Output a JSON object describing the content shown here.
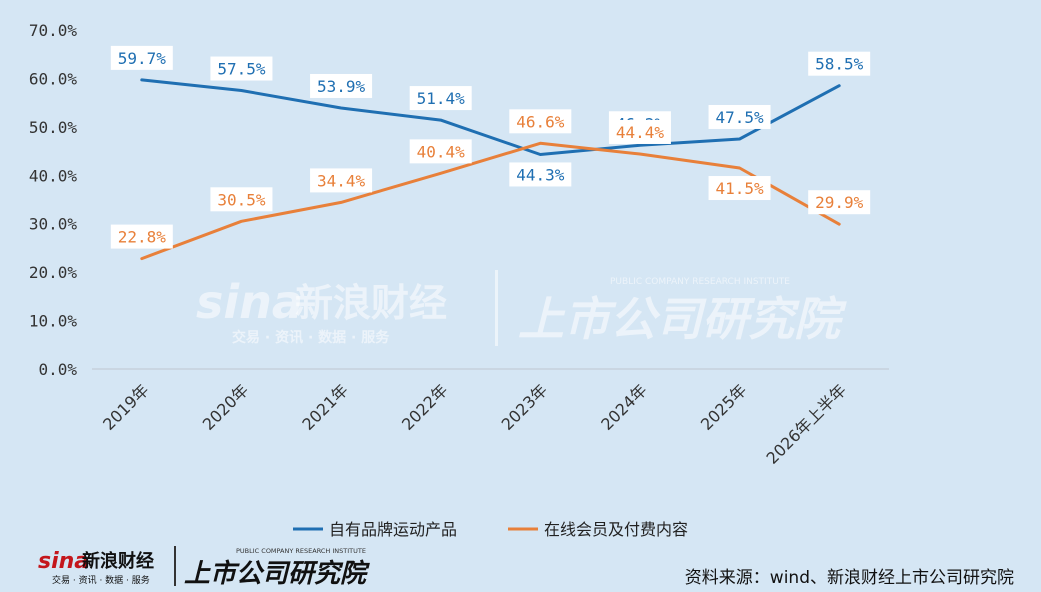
{
  "chart_data": {
    "type": "line",
    "title": "",
    "xlabel": "",
    "ylabel": "",
    "categories": [
      "2019年",
      "2020年",
      "2021年",
      "2022年",
      "2023年",
      "2024年",
      "2025年",
      "2026年上半年"
    ],
    "ylim": [
      0,
      70
    ],
    "yticks": [
      "0.0%",
      "10.0%",
      "20.0%",
      "30.0%",
      "40.0%",
      "50.0%",
      "60.0%",
      "70.0%"
    ],
    "grid": false,
    "legend_position": "bottom",
    "series": [
      {
        "name": "自有品牌运动产品",
        "color": "#1f6fb2",
        "values": [
          59.7,
          57.5,
          53.9,
          51.4,
          44.3,
          46.2,
          47.5,
          58.5
        ],
        "labels": [
          "59.7%",
          "57.5%",
          "53.9%",
          "51.4%",
          "44.3%",
          "46.2%",
          "47.5%",
          "58.5%"
        ]
      },
      {
        "name": "在线会员及付费内容",
        "color": "#e8803a",
        "values": [
          22.8,
          30.5,
          34.4,
          40.4,
          46.6,
          44.4,
          41.5,
          29.9
        ],
        "labels": [
          "22.8%",
          "30.5%",
          "34.4%",
          "40.4%",
          "46.6%",
          "44.4%",
          "41.5%",
          "29.9%"
        ]
      }
    ]
  },
  "watermark": {
    "sina_logo": "sina",
    "sina_name": "新浪财经",
    "sina_sub": "交易 · 资讯 · 数据 · 服务",
    "institute_name": "上市公司研究院",
    "institute_en": "PUBLIC COMPANY RESEARCH INSTITUTE"
  },
  "footer": {
    "source": "资料来源：wind、新浪财经上市公司研究院"
  }
}
